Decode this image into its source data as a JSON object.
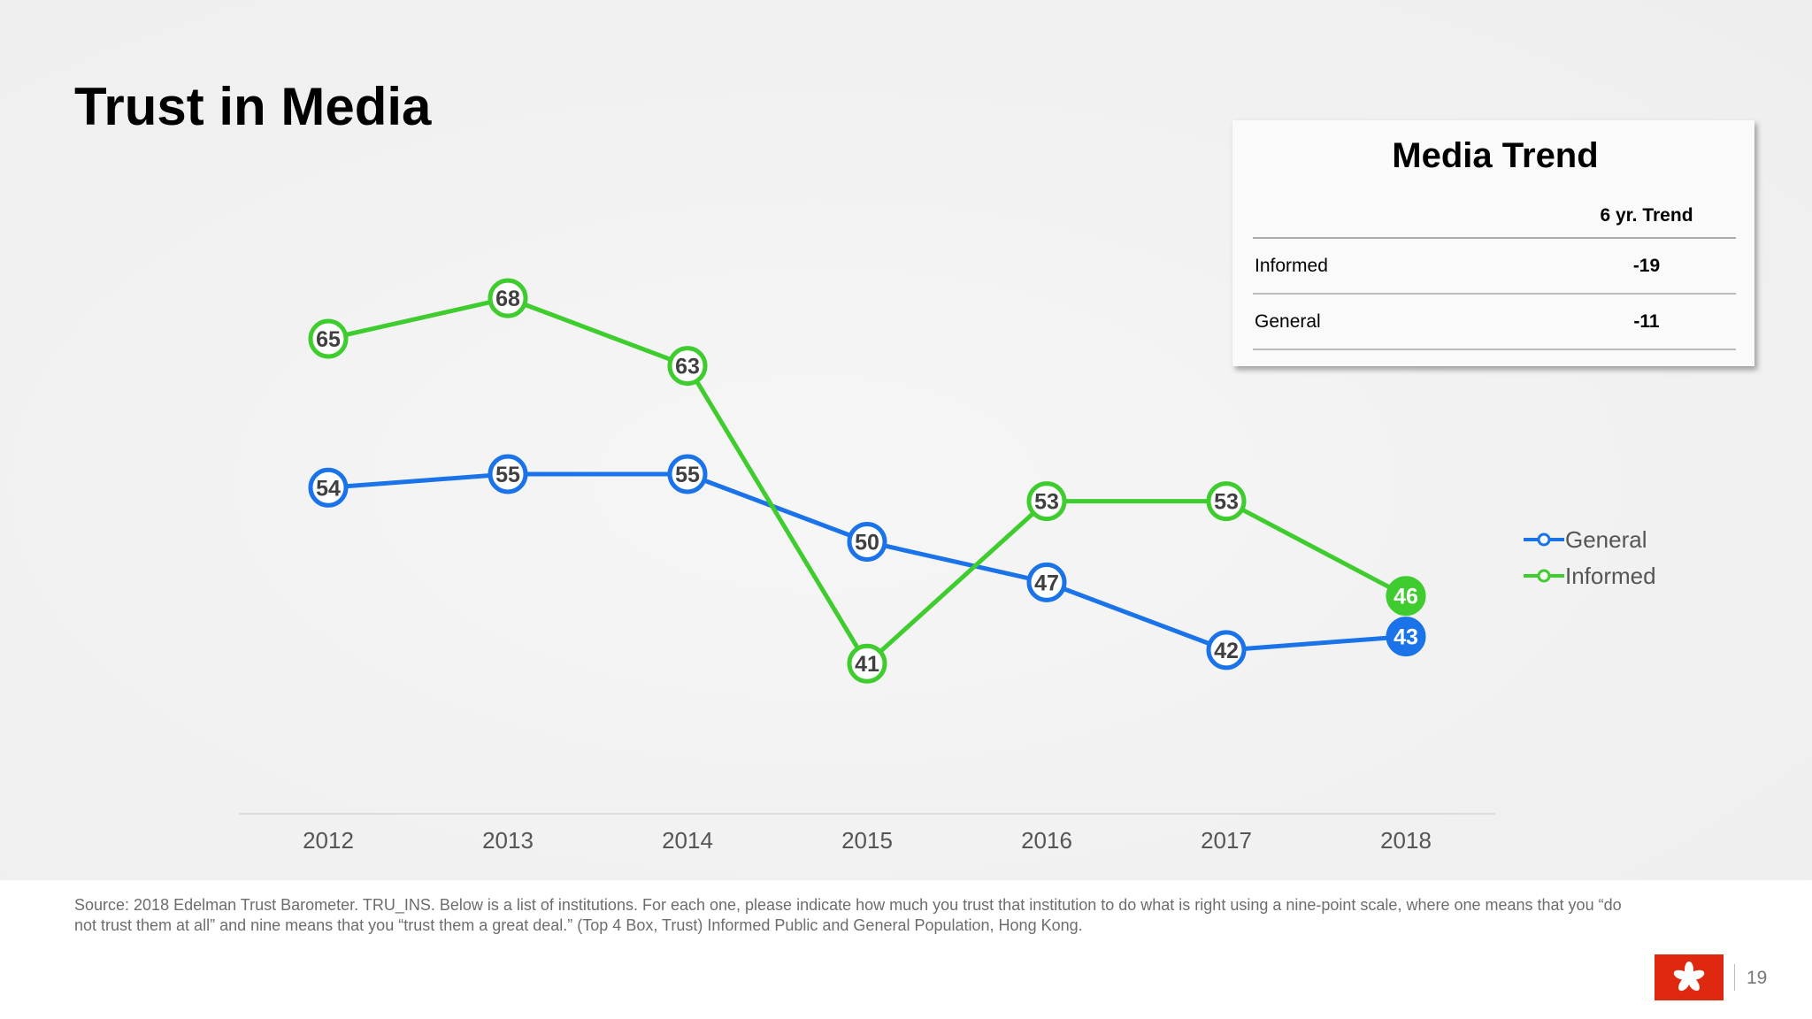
{
  "title": "Trust in Media",
  "chart_data": {
    "type": "line",
    "title": "Trust in Media",
    "categories": [
      "2012",
      "2013",
      "2014",
      "2015",
      "2016",
      "2017",
      "2018"
    ],
    "series": [
      {
        "name": "General",
        "color": "#1a73e8",
        "values": [
          54,
          55,
          55,
          50,
          47,
          42,
          43
        ]
      },
      {
        "name": "Informed",
        "color": "#3fcc2e",
        "values": [
          65,
          68,
          63,
          41,
          53,
          53,
          46
        ]
      }
    ],
    "ylim": [
      25,
      85
    ],
    "xlabel": "",
    "ylabel": "",
    "grid": false,
    "legend": "right"
  },
  "trend_table": {
    "title": "Media Trend",
    "header": "6 yr. Trend",
    "rows": [
      {
        "label": "Informed",
        "value": "-19"
      },
      {
        "label": "General",
        "value": "-11"
      }
    ]
  },
  "source": "Source: 2018 Edelman Trust Barometer. TRU_INS. Below is a list of institutions. For each one, please indicate how much you trust that institution to do what is right using a nine-point scale, where one means that you “do not trust them at all” and nine means that you “trust them a great deal.” (Top 4 Box, Trust) Informed Public and General Population, Hong Kong.",
  "page_number": "19",
  "flag_icon": "hong-kong-flag-icon"
}
